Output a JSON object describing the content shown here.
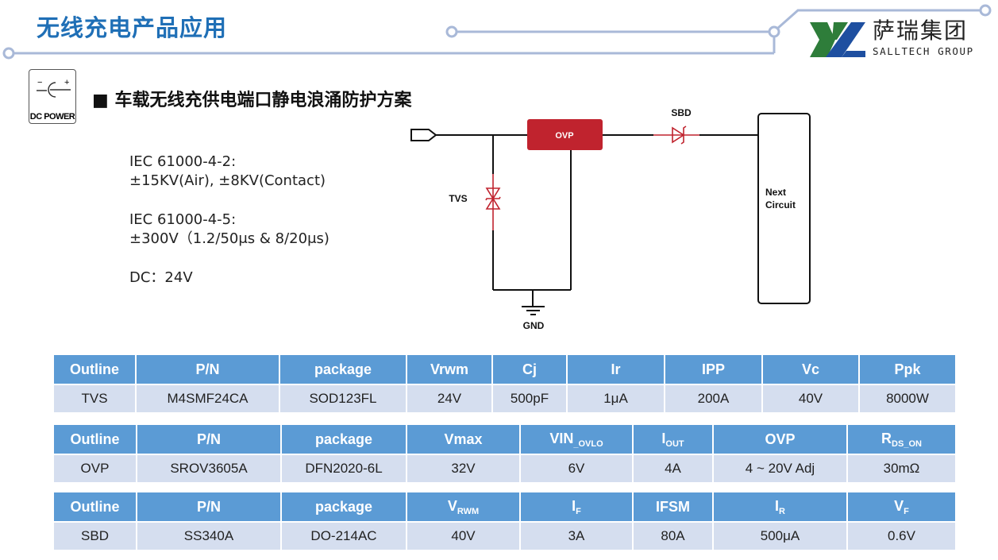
{
  "header": {
    "title": "无线充电产品应用",
    "subtitle": "■ 车载无线充供电端口静电浪涌防护方案"
  },
  "logo": {
    "cn": "萨瑞集团",
    "en": "SALLTECH GROUP"
  },
  "dc_icon": {
    "label": "DC POWER",
    "minus": "−",
    "plus": "+"
  },
  "specs": [
    {
      "line1": "IEC 61000-4-2:",
      "line2": "±15KV(Air), ±8KV(Contact)"
    },
    {
      "line1": "IEC 61000-4-5:",
      "line2": "±300V（1.2/50μs & 8/20μs)"
    },
    {
      "line1": "DC：24V",
      "line2": ""
    }
  ],
  "circuit": {
    "ovp": "OVP",
    "sbd": "SBD",
    "tvs": "TVS",
    "gnd": "GND",
    "next1": "Next",
    "next2": "Circuit",
    "accent": "#c0232e"
  },
  "tables": [
    {
      "headers": [
        {
          "t": "Outline"
        },
        {
          "t": "P/N"
        },
        {
          "t": "package"
        },
        {
          "t": "Vrwm"
        },
        {
          "t": "Cj"
        },
        {
          "t": "Ir"
        },
        {
          "t": "IPP"
        },
        {
          "t": "Vc"
        },
        {
          "t": "Ppk"
        }
      ],
      "row": [
        "TVS",
        "M4SMF24CA",
        "SOD123FL",
        "24V",
        "500pF",
        "1μA",
        "200A",
        "40V",
        "8000W"
      ]
    },
    {
      "headers": [
        {
          "t": "Outline"
        },
        {
          "t": "P/N"
        },
        {
          "t": "package"
        },
        {
          "t": "Vmax"
        },
        {
          "t": "VIN",
          "s": "_OVLO"
        },
        {
          "t": "I",
          "s": "OUT"
        },
        {
          "t": "OVP"
        },
        {
          "t": "R",
          "s": "DS_ON"
        }
      ],
      "row": [
        "OVP",
        "SROV3605A",
        "DFN2020-6L",
        "32V",
        "6V",
        "4A",
        "4 ~ 20V Adj",
        "30mΩ"
      ]
    },
    {
      "headers": [
        {
          "t": "Outline"
        },
        {
          "t": "P/N"
        },
        {
          "t": "package"
        },
        {
          "t": "V",
          "s": "RWM"
        },
        {
          "t": "I",
          "s": "F"
        },
        {
          "t": "IFSM"
        },
        {
          "t": "I",
          "s": "R"
        },
        {
          "t": "V",
          "s": "F"
        }
      ],
      "row": [
        "SBD",
        "SS340A",
        "DO-214AC",
        "40V",
        "3A",
        "80A",
        "500μA",
        "0.6V"
      ]
    }
  ],
  "colors": {
    "header_bg": "#5b9bd5",
    "row_bg": "#d5deef",
    "title": "#1f6fb6",
    "deco_line": "#a9b9d8"
  }
}
